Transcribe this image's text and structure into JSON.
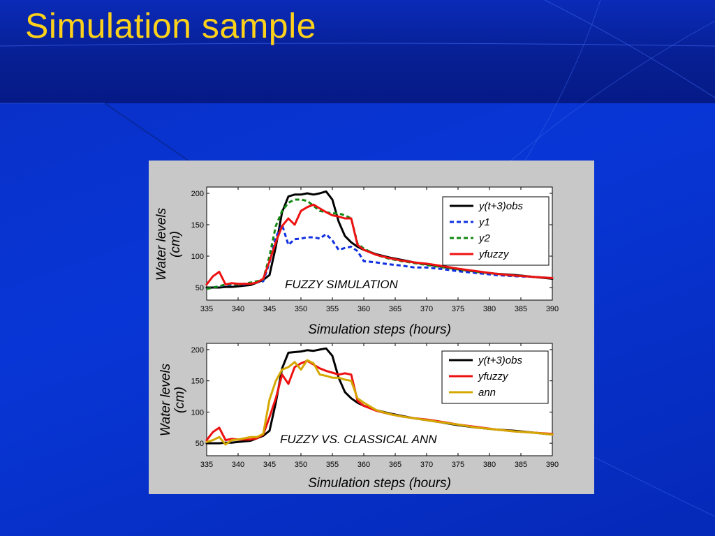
{
  "slide": {
    "title": "Simulation sample",
    "colors": {
      "background": "#0836d6",
      "header_band": "#071f93",
      "title": "#ffd21a",
      "figure_background": "#c8c8c8"
    }
  },
  "chart_data": [
    {
      "type": "line",
      "annotation": "FUZZY SIMULATION",
      "xlabel": "Simulation steps (hours)",
      "ylabel": "Water levels (cm)",
      "xlim": [
        335,
        390
      ],
      "ylim": [
        30,
        210
      ],
      "xticks": [
        335,
        340,
        345,
        350,
        355,
        360,
        365,
        370,
        375,
        380,
        385,
        390
      ],
      "yticks": [
        50,
        100,
        150,
        200
      ],
      "legend_position": "top-right",
      "grid": false,
      "series": [
        {
          "name": "y(t+3)obs",
          "color": "#000000",
          "dash": "solid",
          "x": [
            335,
            336,
            337,
            338,
            339,
            340,
            341,
            342,
            343,
            344,
            345,
            346,
            347,
            348,
            349,
            350,
            351,
            352,
            353,
            354,
            355,
            356,
            357,
            358,
            359,
            360,
            362,
            364,
            366,
            368,
            370,
            372,
            375,
            378,
            381,
            384,
            387,
            390
          ],
          "y": [
            50,
            50,
            50,
            51,
            51,
            52,
            53,
            54,
            58,
            62,
            70,
            115,
            170,
            195,
            198,
            198,
            200,
            198,
            200,
            203,
            190,
            155,
            132,
            122,
            115,
            110,
            103,
            98,
            94,
            90,
            87,
            84,
            79,
            75,
            72,
            70,
            67,
            64
          ]
        },
        {
          "name": "y1",
          "color": "#1030e0",
          "dash": "dashed",
          "x": [
            335,
            336,
            337,
            338,
            339,
            340,
            341,
            342,
            343,
            344,
            345,
            346,
            347,
            348,
            349,
            350,
            351,
            352,
            353,
            354,
            355,
            356,
            357,
            358,
            359,
            360,
            362,
            364,
            366,
            368,
            370,
            372,
            375,
            378,
            381,
            384,
            387,
            390
          ],
          "y": [
            48,
            50,
            52,
            54,
            54,
            55,
            55,
            56,
            58,
            60,
            90,
            130,
            150,
            118,
            127,
            128,
            130,
            130,
            128,
            135,
            125,
            110,
            113,
            115,
            108,
            92,
            90,
            87,
            85,
            82,
            82,
            80,
            76,
            73,
            70,
            68,
            67,
            65
          ]
        },
        {
          "name": "y2",
          "color": "#118811",
          "dash": "dashed",
          "x": [
            335,
            336,
            337,
            338,
            339,
            340,
            341,
            342,
            343,
            344,
            345,
            346,
            347,
            348,
            349,
            350,
            351,
            352,
            353,
            354,
            355,
            356,
            357,
            358,
            359,
            360,
            362,
            364,
            366,
            368,
            370,
            372,
            375,
            378,
            381,
            384,
            387,
            390
          ],
          "y": [
            48,
            50,
            52,
            55,
            55,
            55,
            56,
            58,
            60,
            63,
            100,
            148,
            172,
            185,
            190,
            190,
            188,
            180,
            172,
            170,
            168,
            168,
            165,
            160,
            120,
            112,
            102,
            96,
            92,
            89,
            86,
            83,
            79,
            75,
            72,
            69,
            67,
            65
          ]
        },
        {
          "name": "yfuzzy",
          "color": "#ee1111",
          "dash": "solid",
          "x": [
            335,
            336,
            337,
            338,
            339,
            340,
            341,
            342,
            343,
            344,
            345,
            346,
            347,
            348,
            349,
            350,
            351,
            352,
            353,
            354,
            355,
            356,
            357,
            358,
            359,
            360,
            362,
            364,
            366,
            368,
            370,
            372,
            375,
            378,
            381,
            384,
            387,
            390
          ],
          "y": [
            55,
            68,
            75,
            55,
            57,
            56,
            56,
            56,
            58,
            64,
            92,
            122,
            148,
            160,
            150,
            172,
            178,
            182,
            176,
            170,
            165,
            163,
            160,
            160,
            118,
            110,
            102,
            97,
            93,
            90,
            88,
            85,
            80,
            76,
            72,
            69,
            67,
            65
          ]
        }
      ]
    },
    {
      "type": "line",
      "annotation": "FUZZY VS. CLASSICAL ANN",
      "xlabel": "Simulation steps (hours)",
      "ylabel": "Water levels (cm)",
      "xlim": [
        335,
        390
      ],
      "ylim": [
        30,
        210
      ],
      "xticks": [
        335,
        340,
        345,
        350,
        355,
        360,
        365,
        370,
        375,
        380,
        385,
        390
      ],
      "yticks": [
        50,
        100,
        150,
        200
      ],
      "legend_position": "top-right",
      "grid": false,
      "series": [
        {
          "name": "y(t+3)obs",
          "color": "#000000",
          "dash": "solid",
          "x": [
            335,
            336,
            337,
            338,
            339,
            340,
            341,
            342,
            343,
            344,
            345,
            346,
            347,
            348,
            349,
            350,
            351,
            352,
            353,
            354,
            355,
            356,
            357,
            358,
            359,
            360,
            362,
            364,
            366,
            368,
            370,
            372,
            375,
            378,
            381,
            384,
            387,
            390
          ],
          "y": [
            50,
            50,
            50,
            51,
            51,
            52,
            53,
            54,
            58,
            62,
            70,
            115,
            170,
            195,
            196,
            197,
            199,
            198,
            200,
            202,
            190,
            155,
            132,
            122,
            115,
            110,
            103,
            98,
            94,
            90,
            87,
            84,
            79,
            75,
            72,
            70,
            67,
            64
          ]
        },
        {
          "name": "yfuzzy",
          "color": "#ee1111",
          "dash": "solid",
          "x": [
            335,
            336,
            337,
            338,
            339,
            340,
            341,
            342,
            343,
            344,
            345,
            346,
            347,
            348,
            349,
            350,
            351,
            352,
            353,
            354,
            355,
            356,
            357,
            358,
            359,
            360,
            362,
            364,
            366,
            368,
            370,
            372,
            375,
            378,
            381,
            384,
            387,
            390
          ],
          "y": [
            55,
            68,
            75,
            55,
            57,
            56,
            56,
            56,
            58,
            64,
            92,
            122,
            160,
            145,
            172,
            178,
            182,
            176,
            170,
            166,
            163,
            160,
            162,
            160,
            118,
            110,
            102,
            97,
            93,
            90,
            88,
            85,
            80,
            76,
            72,
            69,
            67,
            65
          ]
        },
        {
          "name": "ann",
          "color": "#d4a800",
          "dash": "solid",
          "x": [
            335,
            336,
            337,
            338,
            339,
            340,
            341,
            342,
            343,
            344,
            345,
            346,
            347,
            348,
            349,
            350,
            351,
            352,
            353,
            354,
            355,
            356,
            357,
            358,
            359,
            360,
            362,
            364,
            366,
            368,
            370,
            372,
            375,
            378,
            381,
            384,
            387,
            390
          ],
          "y": [
            52,
            55,
            60,
            48,
            55,
            56,
            58,
            60,
            60,
            65,
            120,
            150,
            168,
            172,
            180,
            168,
            183,
            178,
            160,
            158,
            155,
            155,
            152,
            150,
            122,
            115,
            103,
            97,
            93,
            90,
            87,
            84,
            80,
            75,
            72,
            69,
            67,
            64
          ]
        }
      ]
    }
  ]
}
